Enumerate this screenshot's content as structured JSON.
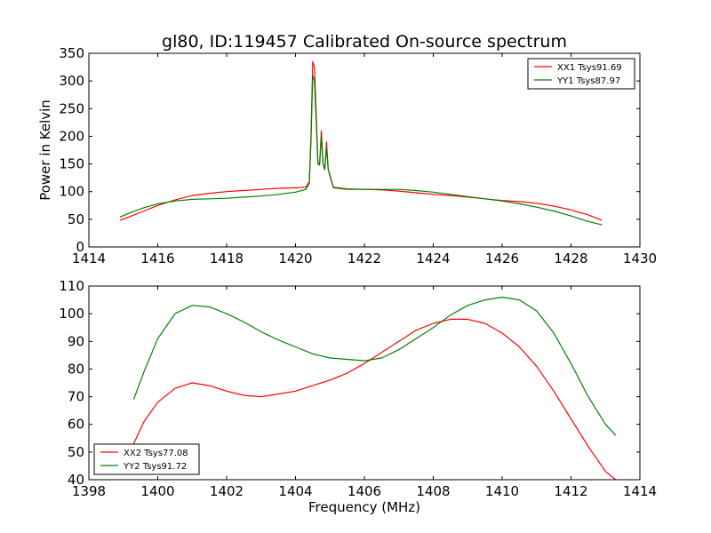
{
  "figure": {
    "title": "gl80, ID:119457 Calibrated On-source spectrum"
  },
  "chart_data": [
    {
      "type": "line",
      "title": "gl80, ID:119457 Calibrated On-source spectrum",
      "xlabel": "",
      "ylabel": "Power in Kelvin",
      "xlim": [
        1414,
        1430
      ],
      "ylim": [
        0,
        350
      ],
      "xticks": [
        "1414",
        "1416",
        "1418",
        "1420",
        "1422",
        "1424",
        "1426",
        "1428",
        "1430"
      ],
      "yticks": [
        "0",
        "50",
        "100",
        "150",
        "200",
        "250",
        "300",
        "350"
      ],
      "grid": false,
      "legend_position": "top-right",
      "series": [
        {
          "name": "XX1 Tsys91.69",
          "color": "#ff0000",
          "x": [
            1414.9,
            1415.2,
            1415.6,
            1416.0,
            1416.5,
            1417.0,
            1417.5,
            1418.0,
            1418.5,
            1419.0,
            1419.5,
            1420.0,
            1420.3,
            1420.4,
            1420.45,
            1420.5,
            1420.55,
            1420.6,
            1420.65,
            1420.7,
            1420.75,
            1420.8,
            1420.85,
            1420.9,
            1420.95,
            1421.0,
            1421.1,
            1421.5,
            1422.0,
            1422.5,
            1423.0,
            1423.5,
            1424.0,
            1424.5,
            1425.0,
            1425.5,
            1426.0,
            1426.5,
            1427.0,
            1427.5,
            1428.0,
            1428.5,
            1428.9
          ],
          "values": [
            48,
            55,
            65,
            75,
            85,
            93,
            97,
            100,
            102,
            104,
            106,
            107,
            108,
            118,
            200,
            335,
            325,
            245,
            150,
            150,
            210,
            150,
            140,
            190,
            140,
            130,
            108,
            105,
            104,
            103,
            101,
            98,
            95,
            93,
            90,
            87,
            84,
            82,
            79,
            74,
            67,
            58,
            48
          ]
        },
        {
          "name": "YY1 Tsys87.97",
          "color": "#008000",
          "x": [
            1414.9,
            1415.2,
            1415.6,
            1416.0,
            1416.5,
            1417.0,
            1417.5,
            1418.0,
            1418.5,
            1419.0,
            1419.5,
            1420.0,
            1420.3,
            1420.4,
            1420.45,
            1420.5,
            1420.55,
            1420.6,
            1420.65,
            1420.7,
            1420.75,
            1420.8,
            1420.85,
            1420.9,
            1420.95,
            1421.0,
            1421.1,
            1421.5,
            1422.0,
            1422.5,
            1423.0,
            1423.5,
            1424.0,
            1424.5,
            1425.0,
            1425.5,
            1426.0,
            1426.5,
            1427.0,
            1427.5,
            1428.0,
            1428.5,
            1428.9
          ],
          "values": [
            54,
            62,
            71,
            78,
            83,
            86,
            87,
            88,
            90,
            92,
            95,
            99,
            104,
            115,
            190,
            310,
            300,
            230,
            150,
            148,
            200,
            150,
            140,
            180,
            140,
            128,
            107,
            104,
            104,
            104,
            104,
            102,
            99,
            95,
            91,
            87,
            83,
            78,
            72,
            65,
            56,
            46,
            40
          ]
        }
      ]
    },
    {
      "type": "line",
      "title": "",
      "xlabel": "Frequency (MHz)",
      "ylabel": "",
      "xlim": [
        1398,
        1414
      ],
      "ylim": [
        40,
        110
      ],
      "xticks": [
        "1398",
        "1400",
        "1402",
        "1404",
        "1406",
        "1408",
        "1410",
        "1412",
        "1414"
      ],
      "yticks": [
        "40",
        "50",
        "60",
        "70",
        "80",
        "90",
        "100",
        "110"
      ],
      "grid": false,
      "legend_position": "bottom-left",
      "series": [
        {
          "name": "XX2 Tsys77.08",
          "color": "#ff0000",
          "x": [
            1399.3,
            1399.6,
            1400.0,
            1400.5,
            1401.0,
            1401.5,
            1402.0,
            1402.5,
            1403.0,
            1403.5,
            1404.0,
            1404.5,
            1405.0,
            1405.5,
            1406.0,
            1406.5,
            1407.0,
            1407.5,
            1408.0,
            1408.5,
            1409.0,
            1409.5,
            1410.0,
            1410.5,
            1411.0,
            1411.5,
            1412.0,
            1412.5,
            1413.0,
            1413.3
          ],
          "values": [
            53,
            61,
            68,
            73,
            75,
            74,
            72,
            70.5,
            70,
            71,
            72,
            74,
            76,
            78.5,
            82,
            86,
            90,
            94,
            96.5,
            98,
            98,
            96.5,
            93,
            88,
            81,
            72,
            62,
            52,
            43,
            40
          ]
        },
        {
          "name": "YY2 Tsys91.72",
          "color": "#008000",
          "x": [
            1399.3,
            1399.6,
            1400.0,
            1400.5,
            1401.0,
            1401.5,
            1402.0,
            1402.5,
            1403.0,
            1403.5,
            1404.0,
            1404.5,
            1405.0,
            1405.5,
            1406.0,
            1406.5,
            1407.0,
            1407.5,
            1408.0,
            1408.5,
            1409.0,
            1409.5,
            1410.0,
            1410.5,
            1411.0,
            1411.5,
            1412.0,
            1412.5,
            1413.0,
            1413.3
          ],
          "values": [
            69,
            79,
            91,
            100,
            103,
            102.5,
            100,
            97,
            93.5,
            90.5,
            88,
            85.5,
            84,
            83.5,
            83,
            84,
            87,
            91,
            95,
            99.5,
            103,
            105,
            106,
            105,
            101,
            93,
            82,
            70,
            60,
            56
          ]
        }
      ]
    }
  ]
}
